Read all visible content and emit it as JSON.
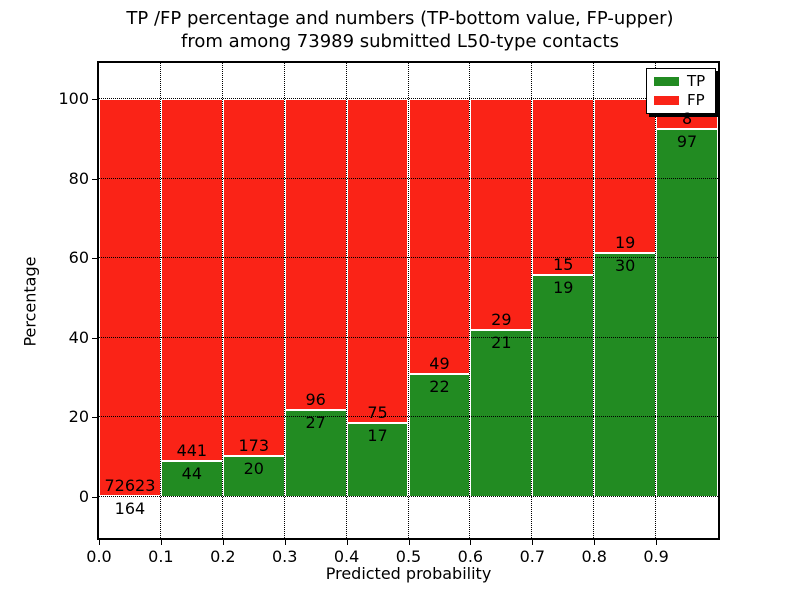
{
  "title": {
    "line1": "TP /FP percentage and numbers (TP-bottom value, FP-upper)",
    "line2": "from among 73989 submitted L50-type contacts"
  },
  "chart_data": {
    "type": "bar",
    "stacked": true,
    "bar_mode": "percent_stacked_from_counts",
    "title": "TP /FP percentage and numbers (TP-bottom value, FP-upper) from among 73989 submitted L50-type contacts",
    "xlabel": "Predicted probability",
    "ylabel": "Percentage",
    "total_contacts": 73989,
    "x_bins": [
      "0.0-0.1",
      "0.1-0.2",
      "0.2-0.3",
      "0.3-0.4",
      "0.4-0.5",
      "0.5-0.6",
      "0.6-0.7",
      "0.7-0.8",
      "0.8-0.9",
      "0.9-1.0"
    ],
    "x_tick_labels": [
      "0.0",
      "0.1",
      "0.2",
      "0.3",
      "0.4",
      "0.5",
      "0.6",
      "0.7",
      "0.8",
      "0.9"
    ],
    "y_ticks": [
      0,
      20,
      40,
      60,
      80,
      100
    ],
    "xlim": [
      0.0,
      1.0
    ],
    "ylim": [
      -11,
      109
    ],
    "grid": true,
    "bar_edge_color": "#ffffff",
    "legend_position": "upper right",
    "series": [
      {
        "name": "TP",
        "color": "#228b22",
        "counts": [
          164,
          44,
          20,
          27,
          17,
          22,
          21,
          19,
          30,
          97
        ]
      },
      {
        "name": "FP",
        "color": "#fa2317",
        "counts": [
          72623,
          441,
          173,
          96,
          75,
          49,
          29,
          15,
          19,
          8
        ]
      }
    ],
    "tp_percent": [
      0.23,
      9.07,
      10.36,
      21.95,
      18.48,
      30.99,
      42.0,
      55.88,
      61.22,
      92.38
    ]
  }
}
